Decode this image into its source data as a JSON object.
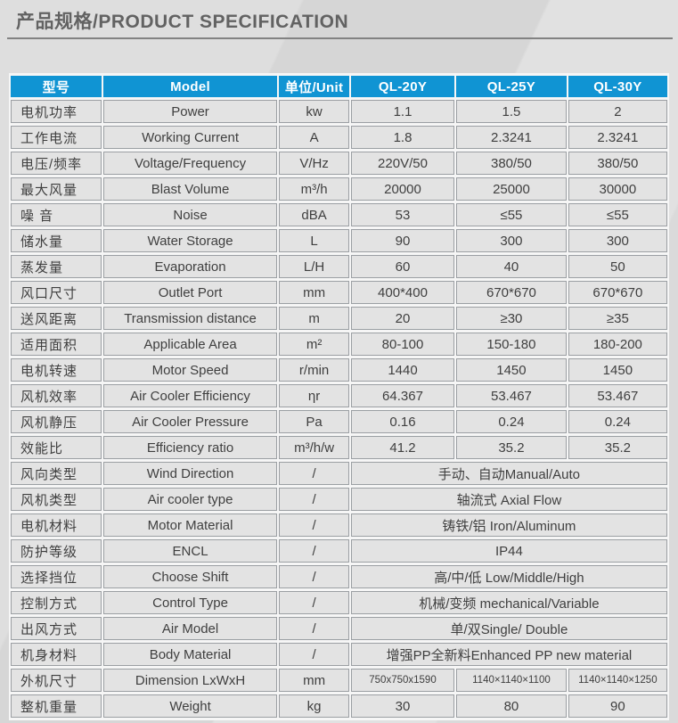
{
  "page": {
    "title": "产品规格/PRODUCT SPECIFICATION"
  },
  "colors": {
    "accent": "#1094d3",
    "header_text": "#ffffff",
    "cell_bg": "#e3e3e3",
    "cell_border": "#9b9fa3",
    "title_text": "#626262"
  },
  "table": {
    "headers": [
      "型号",
      "Model",
      "单位/Unit",
      "QL-20Y",
      "QL-25Y",
      "QL-30Y"
    ],
    "rows": [
      {
        "cn": "电机功率",
        "en": "Power",
        "unit": "kw",
        "values": [
          "1.1",
          "1.5",
          "2"
        ]
      },
      {
        "cn": "工作电流",
        "en": "Working Current",
        "unit": "A",
        "values": [
          "1.8",
          "2.3241",
          "2.3241"
        ]
      },
      {
        "cn": "电压/频率",
        "en": "Voltage/Frequency",
        "unit": "V/Hz",
        "values": [
          "220V/50",
          "380/50",
          "380/50"
        ]
      },
      {
        "cn": "最大风量",
        "en": "Blast Volume",
        "unit": "m³/h",
        "values": [
          "20000",
          "25000",
          "30000"
        ]
      },
      {
        "cn": "噪 音",
        "en": "Noise",
        "unit": "dBA",
        "values": [
          "53",
          "≤55",
          "≤55"
        ]
      },
      {
        "cn": "储水量",
        "en": "Water Storage",
        "unit": "L",
        "values": [
          "90",
          "300",
          "300"
        ]
      },
      {
        "cn": "蒸发量",
        "en": "Evaporation",
        "unit": "L/H",
        "values": [
          "60",
          "40",
          "50"
        ]
      },
      {
        "cn": "风口尺寸",
        "en": "Outlet Port",
        "unit": "mm",
        "values": [
          "400*400",
          "670*670",
          "670*670"
        ]
      },
      {
        "cn": "送风距离",
        "en": "Transmission distance",
        "unit": "m",
        "values": [
          "20",
          "≥30",
          "≥35"
        ]
      },
      {
        "cn": "适用面积",
        "en": "Applicable Area",
        "unit": "m²",
        "values": [
          "80-100",
          "150-180",
          "180-200"
        ]
      },
      {
        "cn": "电机转速",
        "en": "Motor Speed",
        "unit": "r/min",
        "values": [
          "1440",
          "1450",
          "1450"
        ]
      },
      {
        "cn": "风机效率",
        "en": "Air Cooler Efficiency",
        "unit": "ηr",
        "values": [
          "64.367",
          "53.467",
          "53.467"
        ]
      },
      {
        "cn": "风机静压",
        "en": "Air Cooler Pressure",
        "unit": "Pa",
        "values": [
          "0.16",
          "0.24",
          "0.24"
        ]
      },
      {
        "cn": "效能比",
        "en": "Efficiency ratio",
        "unit": "m³/h/w",
        "values": [
          "41.2",
          "35.2",
          "35.2"
        ]
      },
      {
        "cn": "风向类型",
        "en": "Wind Direction",
        "unit": "/",
        "merged": "手动、自动Manual/Auto"
      },
      {
        "cn": "风机类型",
        "en": "Air cooler type",
        "unit": "/",
        "merged": "轴流式 Axial Flow"
      },
      {
        "cn": "电机材料",
        "en": "Motor Material",
        "unit": "/",
        "merged": "铸铁/铝 Iron/Aluminum"
      },
      {
        "cn": "防护等级",
        "en": "ENCL",
        "unit": "/",
        "merged": "IP44"
      },
      {
        "cn": "选择挡位",
        "en": "Choose Shift",
        "unit": "/",
        "merged": "高/中/低 Low/Middle/High"
      },
      {
        "cn": "控制方式",
        "en": "Control Type",
        "unit": "/",
        "merged": "机械/变频 mechanical/Variable"
      },
      {
        "cn": "出风方式",
        "en": "Air Model",
        "unit": "/",
        "merged": "单/双Single/ Double"
      },
      {
        "cn": "机身材料",
        "en": "Body Material",
        "unit": "/",
        "merged": "增强PP全新料Enhanced PP new material"
      },
      {
        "cn": "外机尺寸",
        "en": "Dimension LxWxH",
        "unit": "mm",
        "values": [
          "750x750x1590",
          "1140×1140×1100",
          "1140×1140×1250"
        ]
      },
      {
        "cn": "整机重量",
        "en": "Weight",
        "unit": "kg",
        "values": [
          "30",
          "80",
          "90"
        ]
      }
    ]
  }
}
